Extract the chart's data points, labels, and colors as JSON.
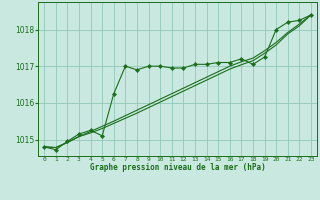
{
  "title": "Graphe pression niveau de la mer (hPa)",
  "background_color": "#c8e8e0",
  "plot_bg_color": "#c8e8e0",
  "grid_color": "#90c8b8",
  "line_color": "#1a6e1a",
  "marker_color": "#1a6e1a",
  "xlim": [
    -0.5,
    23.5
  ],
  "ylim": [
    1014.55,
    1018.75
  ],
  "yticks": [
    1015,
    1016,
    1017,
    1018
  ],
  "xticks": [
    0,
    1,
    2,
    3,
    4,
    5,
    6,
    7,
    8,
    9,
    10,
    11,
    12,
    13,
    14,
    15,
    16,
    17,
    18,
    19,
    20,
    21,
    22,
    23
  ],
  "series1": [
    [
      0,
      1014.8
    ],
    [
      1,
      1014.72
    ],
    [
      2,
      1014.95
    ],
    [
      3,
      1015.15
    ],
    [
      4,
      1015.25
    ],
    [
      5,
      1015.1
    ],
    [
      6,
      1016.25
    ],
    [
      7,
      1017.0
    ],
    [
      8,
      1016.9
    ],
    [
      9,
      1017.0
    ],
    [
      10,
      1017.0
    ],
    [
      11,
      1016.95
    ],
    [
      12,
      1016.95
    ],
    [
      13,
      1017.05
    ],
    [
      14,
      1017.05
    ],
    [
      15,
      1017.1
    ],
    [
      16,
      1017.1
    ],
    [
      17,
      1017.2
    ],
    [
      18,
      1017.05
    ],
    [
      19,
      1017.25
    ],
    [
      20,
      1018.0
    ],
    [
      21,
      1018.2
    ],
    [
      22,
      1018.25
    ],
    [
      23,
      1018.4
    ]
  ],
  "series2": [
    [
      0,
      1014.8
    ],
    [
      1,
      1014.78
    ],
    [
      2,
      1014.92
    ],
    [
      3,
      1015.08
    ],
    [
      4,
      1015.22
    ],
    [
      5,
      1015.36
    ],
    [
      6,
      1015.5
    ],
    [
      7,
      1015.65
    ],
    [
      8,
      1015.8
    ],
    [
      9,
      1015.95
    ],
    [
      10,
      1016.1
    ],
    [
      11,
      1016.25
    ],
    [
      12,
      1016.4
    ],
    [
      13,
      1016.55
    ],
    [
      14,
      1016.7
    ],
    [
      15,
      1016.85
    ],
    [
      16,
      1017.0
    ],
    [
      17,
      1017.12
    ],
    [
      18,
      1017.22
    ],
    [
      19,
      1017.42
    ],
    [
      20,
      1017.65
    ],
    [
      21,
      1017.92
    ],
    [
      22,
      1018.15
    ],
    [
      23,
      1018.4
    ]
  ],
  "series3": [
    [
      0,
      1014.8
    ],
    [
      1,
      1014.78
    ],
    [
      2,
      1014.92
    ],
    [
      3,
      1015.08
    ],
    [
      4,
      1015.18
    ],
    [
      5,
      1015.3
    ],
    [
      6,
      1015.44
    ],
    [
      7,
      1015.58
    ],
    [
      8,
      1015.72
    ],
    [
      9,
      1015.87
    ],
    [
      10,
      1016.02
    ],
    [
      11,
      1016.17
    ],
    [
      12,
      1016.32
    ],
    [
      13,
      1016.47
    ],
    [
      14,
      1016.62
    ],
    [
      15,
      1016.77
    ],
    [
      16,
      1016.92
    ],
    [
      17,
      1017.04
    ],
    [
      18,
      1017.15
    ],
    [
      19,
      1017.35
    ],
    [
      20,
      1017.58
    ],
    [
      21,
      1017.88
    ],
    [
      22,
      1018.1
    ],
    [
      23,
      1018.4
    ]
  ]
}
